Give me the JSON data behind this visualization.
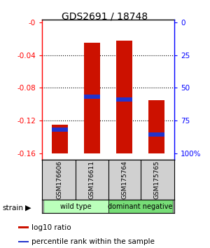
{
  "title": "GDS2691 / 18748",
  "categories": [
    "GSM176606",
    "GSM176611",
    "GSM175764",
    "GSM175765"
  ],
  "log10_tops": [
    -0.125,
    -0.025,
    -0.022,
    -0.095
  ],
  "percentile_values": [
    -0.131,
    -0.091,
    -0.094,
    -0.137
  ],
  "bar_bottom": -0.16,
  "ylim_min": -0.168,
  "ylim_max": 0.003,
  "left_ticks": [
    0,
    -0.04,
    -0.08,
    -0.12,
    -0.16
  ],
  "left_tick_labels": [
    "-0",
    "-0.04",
    "-0.08",
    "-0.12",
    "-0.16"
  ],
  "right_tick_labels": [
    "100%",
    "75",
    "50",
    "25",
    "0"
  ],
  "bar_color": "#cc1100",
  "percentile_color": "#2233cc",
  "groups": [
    {
      "label": "wild type",
      "cols": [
        0,
        1
      ],
      "color": "#bbffbb"
    },
    {
      "label": "dominant negative",
      "cols": [
        2,
        3
      ],
      "color": "#77dd77"
    }
  ],
  "legend_items": [
    {
      "color": "#cc1100",
      "label": "log10 ratio"
    },
    {
      "color": "#2233cc",
      "label": "percentile rank within the sample"
    }
  ],
  "strain_label": "strain",
  "bar_width": 0.5
}
